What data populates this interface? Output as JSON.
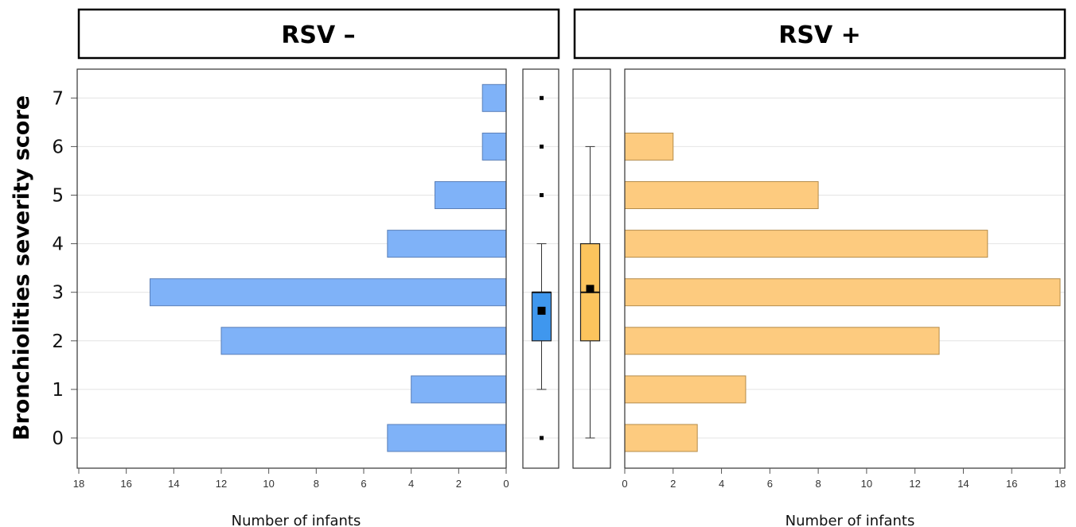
{
  "chart_data": {
    "type": "bar",
    "ylabel": "Bronchiolities severity score",
    "categories": [
      "0",
      "1",
      "2",
      "3",
      "4",
      "5",
      "6",
      "7"
    ],
    "xlim": [
      0,
      18
    ],
    "x_ticks": [
      "0",
      "2",
      "4",
      "6",
      "8",
      "10",
      "12",
      "14",
      "16",
      "18"
    ],
    "grid": true,
    "colors": {
      "rsv_neg": "#7fb2f8",
      "rsv_neg_box": "#3f97ee",
      "rsv_pos": "#fdcb7f",
      "rsv_pos_box": "#fcc45d"
    },
    "panels": [
      {
        "title": "RSV –",
        "xlabel": "Number of infants",
        "orientation": "left",
        "values": [
          5,
          4,
          12,
          15,
          5,
          3,
          1,
          1
        ],
        "boxplot": {
          "min": 1,
          "q1": 2,
          "median": 3,
          "q3": 3,
          "max": 4,
          "mean": 2.62,
          "outliers": [
            0,
            5,
            6,
            7
          ]
        }
      },
      {
        "title": "RSV +",
        "xlabel": "Number of infants",
        "orientation": "right",
        "values": [
          3,
          5,
          13,
          18,
          15,
          8,
          2,
          0
        ],
        "boxplot": {
          "min": 0,
          "q1": 2,
          "median": 3,
          "q3": 4,
          "max": 6,
          "mean": 3.07,
          "outliers": []
        }
      }
    ]
  }
}
